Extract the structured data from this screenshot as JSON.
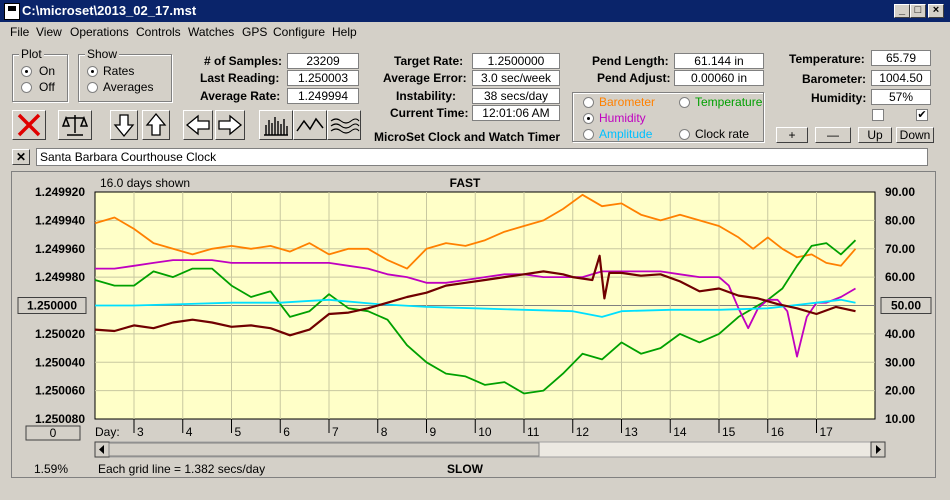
{
  "window": {
    "title": "C:\\microset\\2013_02_17.mst",
    "minimize": "_",
    "maximize": "□",
    "close": "×"
  },
  "menu": [
    "File",
    "View",
    "Operations",
    "Controls",
    "Watches",
    "GPS",
    "Configure",
    "Help"
  ],
  "plot_group": {
    "label": "Plot",
    "on": "On",
    "off": "Off",
    "selected": "On"
  },
  "show_group": {
    "label": "Show",
    "rates": "Rates",
    "averages": "Averages",
    "selected": "Rates"
  },
  "stats": {
    "samples_label": "# of Samples:",
    "samples": "23209",
    "last_reading_label": "Last Reading:",
    "last_reading": "1.250003",
    "avg_rate_label": "Average Rate:",
    "avg_rate": "1.249994",
    "target_rate_label": "Target Rate:",
    "target_rate": "1.2500000",
    "avg_error_label": "Average Error:",
    "avg_error": "3.0 sec/week",
    "instability_label": "Instability:",
    "instability": "38 secs/day",
    "current_time_label": "Current Time:",
    "current_time": "12:01:06 AM",
    "pend_length_label": "Pend Length:",
    "pend_length": "61.144 in",
    "pend_adjust_label": "Pend Adjust:",
    "pend_adjust": "0.00060 in",
    "temperature_label": "Temperature:",
    "temperature": "65.79",
    "barometer_label": "Barometer:",
    "barometer": "1004.50",
    "humidity_label": "Humidity:",
    "humidity": "57%"
  },
  "app_caption": "MicroSet Clock and Watch Timer",
  "sensor_options": [
    {
      "label": "Barometer",
      "color": "#ff8000",
      "selected": false
    },
    {
      "label": "Temperature",
      "color": "#00a000",
      "selected": false
    },
    {
      "label": "Humidity",
      "color": "#c000c0",
      "selected": true
    },
    {
      "label": "Clock rate",
      "color": "#000000",
      "selected": false
    },
    {
      "label": "Amplitude",
      "color": "#00c0ff",
      "selected": false
    }
  ],
  "small_buttons": {
    "plus": "+",
    "minus": "—",
    "up": "Up",
    "down": "Down",
    "check2": "✔"
  },
  "clock_name": "Santa Barbara Courthouse Clock",
  "clock_clear": "✕",
  "chart_data": {
    "type": "line",
    "days_shown": "16.0 days shown",
    "top_label": "FAST",
    "bottom_label": "SLOW",
    "grid_note": "Each grid line = 1.382 secs/day",
    "percent": "1.59%",
    "center_rate": "1.250000",
    "center_right": "50.00",
    "zero_button": "0",
    "day_label": "Day:",
    "x_ticks": [
      3,
      4,
      5,
      6,
      7,
      8,
      9,
      10,
      11,
      12,
      13,
      14,
      15,
      16,
      17
    ],
    "x_range": [
      2.2,
      18.2
    ],
    "left_ticks": [
      "1.249920",
      "1.249940",
      "1.249960",
      "1.249980",
      "1.250000",
      "1.250020",
      "1.250040",
      "1.250060",
      "1.250080"
    ],
    "left_range": [
      1.24992,
      1.25008
    ],
    "right_ticks": [
      "90.00",
      "80.00",
      "70.00",
      "60.00",
      "50.00",
      "40.00",
      "30.00",
      "20.00",
      "10.00"
    ],
    "right_range": [
      10,
      90
    ],
    "series": [
      {
        "name": "Barometer",
        "color": "#ff8000",
        "axis": "right",
        "x": [
          2.2,
          2.6,
          3.0,
          3.4,
          3.8,
          4.2,
          4.6,
          5.0,
          5.4,
          5.8,
          6.2,
          6.6,
          7.0,
          7.4,
          7.8,
          8.2,
          8.6,
          9.0,
          9.4,
          9.8,
          10.2,
          10.6,
          11.0,
          11.4,
          11.8,
          12.2,
          12.6,
          13.0,
          13.4,
          13.8,
          14.2,
          14.6,
          15.0,
          15.4,
          15.7,
          16.0,
          16.3,
          16.6,
          16.9,
          17.2,
          17.5,
          17.8
        ],
        "y": [
          79,
          81,
          77,
          72,
          70,
          68,
          70,
          71,
          70,
          71,
          69,
          72,
          68,
          70,
          70,
          66,
          63,
          70,
          72,
          71,
          73,
          76,
          78,
          80,
          84,
          89,
          85,
          86,
          82,
          80,
          82,
          80,
          78,
          74,
          70,
          74,
          70,
          67,
          68,
          65,
          64,
          70
        ]
      },
      {
        "name": "Temperature",
        "color": "#00a000",
        "axis": "right",
        "x": [
          2.2,
          2.6,
          3.0,
          3.4,
          3.8,
          4.2,
          4.6,
          5.0,
          5.4,
          5.8,
          6.2,
          6.6,
          7.0,
          7.4,
          7.8,
          8.2,
          8.6,
          9.0,
          9.4,
          9.8,
          10.2,
          10.6,
          11.0,
          11.4,
          11.8,
          12.2,
          12.6,
          13.0,
          13.4,
          13.8,
          14.2,
          14.6,
          15.0,
          15.4,
          15.7,
          16.0,
          16.3,
          16.6,
          16.9,
          17.2,
          17.5,
          17.8
        ],
        "y": [
          59,
          57,
          57,
          62,
          60,
          63,
          63,
          57,
          53,
          55,
          46,
          48,
          54,
          49,
          48,
          45,
          36,
          30,
          26,
          25,
          22,
          23,
          19,
          20,
          26,
          33,
          31,
          37,
          33,
          35,
          40,
          37,
          40,
          46,
          49,
          52,
          56,
          64,
          71,
          72,
          68,
          73
        ]
      },
      {
        "name": "Humidity",
        "color": "#c000c0",
        "axis": "right",
        "x": [
          2.2,
          2.6,
          3.0,
          3.4,
          3.8,
          4.2,
          4.6,
          5.0,
          5.4,
          5.8,
          6.2,
          6.6,
          7.0,
          7.4,
          7.8,
          8.2,
          8.6,
          9.0,
          9.4,
          9.8,
          10.2,
          10.6,
          11.0,
          11.4,
          11.8,
          12.2,
          12.6,
          13.0,
          13.4,
          13.8,
          14.2,
          14.6,
          15.0,
          15.2,
          15.4,
          15.6,
          15.8,
          16.0,
          16.2,
          16.4,
          16.6,
          16.8,
          17.0,
          17.2,
          17.5,
          17.8
        ],
        "y": [
          63,
          63,
          64,
          65,
          66,
          66,
          66,
          65,
          65,
          65,
          65,
          65,
          65,
          64,
          63,
          61,
          60,
          58,
          58,
          59,
          60,
          61,
          61,
          60,
          60,
          60,
          62,
          62,
          62,
          62,
          61,
          60,
          60,
          57,
          49,
          42,
          49,
          52,
          52,
          48,
          32,
          46,
          51,
          51,
          53,
          56
        ]
      },
      {
        "name": "Amplitude",
        "color": "#00e0ff",
        "axis": "right",
        "x": [
          2.2,
          3.0,
          4.0,
          5.0,
          6.0,
          6.5,
          7.0,
          8.0,
          9.0,
          10.0,
          11.0,
          12.0,
          12.6,
          13.0,
          14.0,
          15.0,
          16.0,
          16.5,
          17.0,
          17.5,
          17.8
        ],
        "y": [
          50,
          50,
          50.5,
          51,
          51,
          51.5,
          52,
          50.5,
          49.5,
          49,
          48.5,
          48,
          46,
          48,
          48.5,
          48.5,
          49,
          50,
          51,
          52,
          51
        ]
      },
      {
        "name": "Clock rate",
        "color": "#700000",
        "axis": "left",
        "x": [
          2.2,
          2.6,
          3.0,
          3.4,
          3.8,
          4.2,
          4.6,
          5.0,
          5.4,
          5.8,
          6.2,
          6.6,
          7.0,
          7.4,
          7.8,
          8.2,
          8.6,
          9.0,
          9.4,
          9.8,
          10.2,
          10.6,
          11.0,
          11.4,
          11.8,
          12.0,
          12.4,
          12.55,
          12.65,
          12.75,
          13.0,
          13.4,
          13.8,
          14.2,
          14.6,
          15.0,
          15.4,
          15.8,
          16.2,
          16.6,
          17.0,
          17.4,
          17.8
        ],
        "y": [
          1.250017,
          1.250018,
          1.250014,
          1.250016,
          1.250012,
          1.25001,
          1.250012,
          1.250015,
          1.250014,
          1.250016,
          1.250021,
          1.250017,
          1.250006,
          1.250005,
          1.250002,
          1.249998,
          1.249994,
          1.249991,
          1.249986,
          1.249984,
          1.249982,
          1.24998,
          1.249978,
          1.249976,
          1.249978,
          1.24998,
          1.249982,
          1.249965,
          1.249995,
          1.249977,
          1.249977,
          1.249979,
          1.249978,
          1.249983,
          1.24999,
          1.249988,
          1.249993,
          1.249995,
          1.249999,
          1.250002,
          1.250006,
          1.250001,
          1.250004
        ]
      }
    ]
  }
}
